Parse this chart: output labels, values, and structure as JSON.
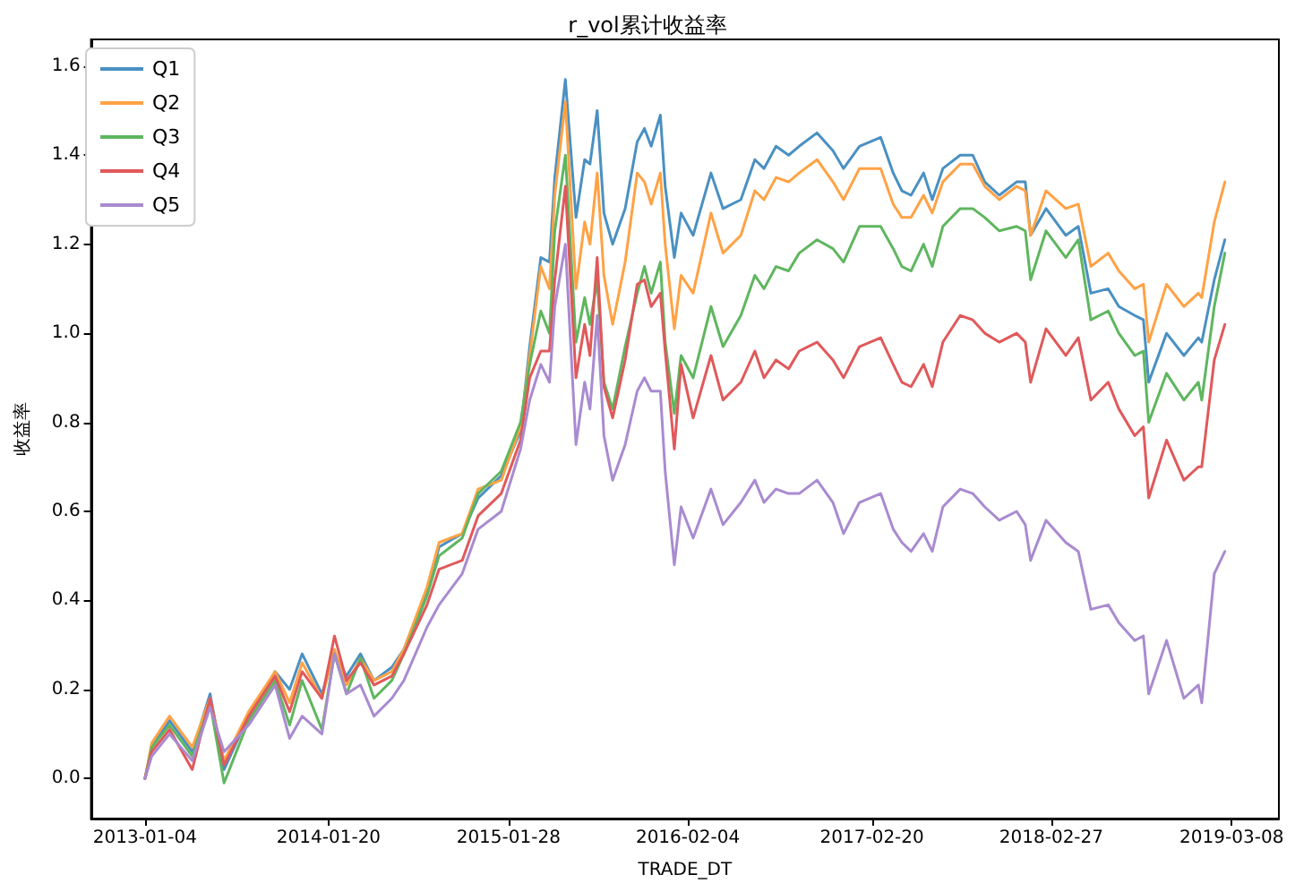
{
  "chart_data": {
    "type": "line",
    "title": "r_vol累计收益率",
    "xlabel": "TRADE_DT",
    "ylabel": "收益率",
    "x": [
      "2013-01-04",
      "2013-01-18",
      "2013-02-24",
      "2013-04-12",
      "2013-05-19",
      "2013-06-17",
      "2013-08-07",
      "2013-10-01",
      "2013-10-31",
      "2013-11-26",
      "2014-01-06",
      "2014-02-01",
      "2014-02-26",
      "2014-03-27",
      "2014-04-24",
      "2014-05-31",
      "2014-06-25",
      "2014-08-12",
      "2014-09-06",
      "2014-10-24",
      "2014-11-26",
      "2015-01-13",
      "2015-02-22",
      "2015-03-13",
      "2015-04-05",
      "2015-04-23",
      "2015-05-04",
      "2015-05-26",
      "2015-06-17",
      "2015-07-05",
      "2015-07-16",
      "2015-07-31",
      "2015-08-14",
      "2015-09-01",
      "2015-09-27",
      "2015-10-22",
      "2015-11-06",
      "2015-11-20",
      "2015-12-09",
      "2015-12-19",
      "2016-01-07",
      "2016-01-21",
      "2016-02-15",
      "2016-03-23",
      "2016-04-17",
      "2016-05-24",
      "2016-06-22",
      "2016-07-11",
      "2016-08-05",
      "2016-08-31",
      "2016-09-22",
      "2016-10-29",
      "2016-12-01",
      "2016-12-23",
      "2017-01-25",
      "2017-03-10",
      "2017-04-05",
      "2017-04-23",
      "2017-05-12",
      "2017-06-07",
      "2017-06-25",
      "2017-07-17",
      "2017-08-22",
      "2017-09-17",
      "2017-10-12",
      "2017-11-11",
      "2017-12-17",
      "2018-01-04",
      "2018-01-15",
      "2018-02-16",
      "2018-03-29",
      "2018-04-24",
      "2018-05-20",
      "2018-06-25",
      "2018-07-17",
      "2018-08-19",
      "2018-09-06",
      "2018-09-17",
      "2018-10-24",
      "2018-11-29",
      "2018-12-29",
      "2019-01-05",
      "2019-01-31",
      "2019-02-22"
    ],
    "series": [
      {
        "name": "Q1",
        "color": "#4a90c2",
        "values": [
          0,
          0.07,
          0.13,
          0.06,
          0.19,
          0.02,
          0.14,
          0.24,
          0.2,
          0.28,
          0.19,
          0.28,
          0.23,
          0.28,
          0.22,
          0.25,
          0.29,
          0.42,
          0.52,
          0.55,
          0.63,
          0.68,
          0.78,
          0.97,
          1.17,
          1.16,
          1.35,
          1.57,
          1.26,
          1.39,
          1.38,
          1.5,
          1.27,
          1.2,
          1.28,
          1.43,
          1.46,
          1.42,
          1.49,
          1.33,
          1.17,
          1.27,
          1.22,
          1.36,
          1.28,
          1.3,
          1.39,
          1.37,
          1.42,
          1.4,
          1.42,
          1.45,
          1.41,
          1.37,
          1.42,
          1.44,
          1.36,
          1.32,
          1.31,
          1.36,
          1.3,
          1.37,
          1.4,
          1.4,
          1.34,
          1.31,
          1.34,
          1.34,
          1.22,
          1.28,
          1.22,
          1.24,
          1.09,
          1.1,
          1.06,
          1.04,
          1.03,
          0.89,
          1.0,
          0.95,
          0.99,
          0.98,
          1.12,
          1.21
        ]
      },
      {
        "name": "Q2",
        "color": "#ffa245",
        "values": [
          0,
          0.08,
          0.14,
          0.07,
          0.18,
          0.04,
          0.15,
          0.24,
          0.17,
          0.26,
          0.18,
          0.29,
          0.21,
          0.27,
          0.22,
          0.24,
          0.29,
          0.43,
          0.53,
          0.55,
          0.65,
          0.67,
          0.79,
          0.95,
          1.15,
          1.1,
          1.31,
          1.52,
          1.1,
          1.25,
          1.2,
          1.36,
          1.13,
          1.02,
          1.16,
          1.36,
          1.34,
          1.29,
          1.36,
          1.2,
          1.01,
          1.13,
          1.09,
          1.27,
          1.18,
          1.22,
          1.32,
          1.3,
          1.35,
          1.34,
          1.36,
          1.39,
          1.34,
          1.3,
          1.37,
          1.37,
          1.29,
          1.26,
          1.26,
          1.31,
          1.27,
          1.34,
          1.38,
          1.38,
          1.33,
          1.3,
          1.33,
          1.32,
          1.22,
          1.32,
          1.28,
          1.29,
          1.15,
          1.18,
          1.14,
          1.1,
          1.11,
          0.98,
          1.11,
          1.06,
          1.09,
          1.08,
          1.25,
          1.34
        ]
      },
      {
        "name": "Q3",
        "color": "#5fb65f",
        "values": [
          0,
          0.07,
          0.12,
          0.05,
          0.17,
          -0.01,
          0.13,
          0.22,
          0.12,
          0.22,
          0.11,
          0.28,
          0.19,
          0.27,
          0.18,
          0.22,
          0.28,
          0.41,
          0.5,
          0.54,
          0.64,
          0.69,
          0.8,
          0.93,
          1.05,
          1.0,
          1.23,
          1.4,
          0.98,
          1.08,
          1.02,
          1.12,
          0.89,
          0.83,
          0.97,
          1.09,
          1.15,
          1.09,
          1.16,
          0.98,
          0.82,
          0.95,
          0.9,
          1.06,
          0.97,
          1.04,
          1.13,
          1.1,
          1.15,
          1.14,
          1.18,
          1.21,
          1.19,
          1.16,
          1.24,
          1.24,
          1.19,
          1.15,
          1.14,
          1.2,
          1.15,
          1.24,
          1.28,
          1.28,
          1.26,
          1.23,
          1.24,
          1.23,
          1.12,
          1.23,
          1.17,
          1.21,
          1.03,
          1.05,
          1.0,
          0.95,
          0.96,
          0.8,
          0.91,
          0.85,
          0.89,
          0.85,
          1.06,
          1.18
        ]
      },
      {
        "name": "Q4",
        "color": "#e0595b",
        "values": [
          0,
          0.06,
          0.11,
          0.02,
          0.18,
          0.03,
          0.14,
          0.23,
          0.15,
          0.24,
          0.18,
          0.32,
          0.22,
          0.26,
          0.21,
          0.23,
          0.28,
          0.39,
          0.47,
          0.49,
          0.59,
          0.64,
          0.76,
          0.9,
          0.96,
          0.96,
          1.12,
          1.33,
          0.9,
          1.02,
          0.95,
          1.17,
          0.88,
          0.81,
          0.94,
          1.11,
          1.12,
          1.06,
          1.09,
          0.96,
          0.74,
          0.93,
          0.81,
          0.95,
          0.85,
          0.89,
          0.96,
          0.9,
          0.94,
          0.92,
          0.96,
          0.98,
          0.94,
          0.9,
          0.97,
          0.99,
          0.93,
          0.89,
          0.88,
          0.93,
          0.88,
          0.98,
          1.04,
          1.03,
          1.0,
          0.98,
          1.0,
          0.98,
          0.89,
          1.01,
          0.95,
          0.99,
          0.85,
          0.89,
          0.83,
          0.77,
          0.79,
          0.63,
          0.76,
          0.67,
          0.7,
          0.7,
          0.94,
          1.02
        ]
      },
      {
        "name": "Q5",
        "color": "#a98bd0",
        "values": [
          0,
          0.05,
          0.1,
          0.04,
          0.16,
          0.06,
          0.12,
          0.21,
          0.09,
          0.14,
          0.1,
          0.28,
          0.19,
          0.21,
          0.14,
          0.18,
          0.22,
          0.34,
          0.39,
          0.46,
          0.56,
          0.6,
          0.74,
          0.85,
          0.93,
          0.89,
          1.06,
          1.2,
          0.75,
          0.89,
          0.83,
          1.04,
          0.77,
          0.67,
          0.75,
          0.87,
          0.9,
          0.87,
          0.87,
          0.69,
          0.48,
          0.61,
          0.54,
          0.65,
          0.57,
          0.62,
          0.67,
          0.62,
          0.65,
          0.64,
          0.64,
          0.67,
          0.62,
          0.55,
          0.62,
          0.64,
          0.56,
          0.53,
          0.51,
          0.55,
          0.51,
          0.61,
          0.65,
          0.64,
          0.61,
          0.58,
          0.6,
          0.57,
          0.49,
          0.58,
          0.53,
          0.51,
          0.38,
          0.39,
          0.35,
          0.31,
          0.32,
          0.19,
          0.31,
          0.18,
          0.21,
          0.17,
          0.46,
          0.51
        ]
      }
    ],
    "xlim": [
      "2012-09-14",
      "2019-06-14"
    ],
    "xticks": [
      "2013-01-04",
      "2014-01-20",
      "2015-01-28",
      "2016-02-04",
      "2017-02-20",
      "2018-02-27",
      "2019-03-08"
    ],
    "ylim": [
      -0.09,
      1.66
    ],
    "yticks": [
      {
        "value": 0,
        "label": "0.0"
      },
      {
        "value": 0.2,
        "label": "0.2"
      },
      {
        "value": 0.4,
        "label": "0.4"
      },
      {
        "value": 0.6,
        "label": "0.6"
      },
      {
        "value": 0.8,
        "label": "0.8"
      },
      {
        "value": 1,
        "label": "1.0"
      },
      {
        "value": 1.2,
        "label": "1.2"
      },
      {
        "value": 1.4,
        "label": "1.4"
      },
      {
        "value": 1.6,
        "label": "1.6"
      }
    ],
    "legend": "top left",
    "marker": "none",
    "line_style": "solid",
    "grid": false
  }
}
